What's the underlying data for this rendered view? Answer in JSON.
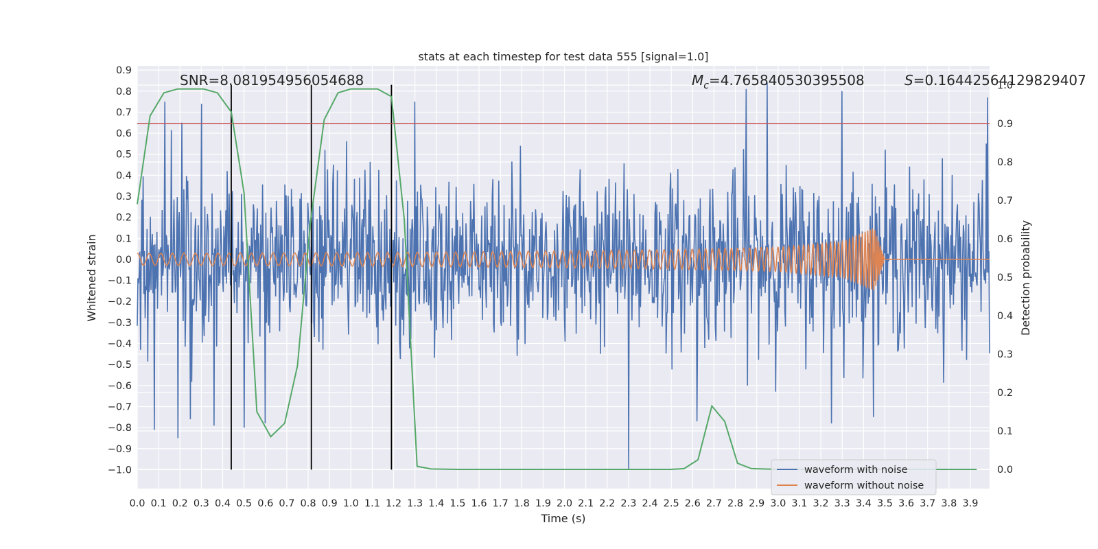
{
  "chart_data": {
    "type": "line",
    "title": "stats at each timestep for test data 555 [signal=1.0]",
    "xlabel": "Time (s)",
    "ylabel": "Whitened strain",
    "y2label": "Detection probability",
    "xlim": [
      0.0,
      3.99
    ],
    "ylim": [
      -1.09,
      0.92
    ],
    "y2lim": [
      -0.05,
      1.05
    ],
    "x_ticks": [
      "0.0",
      "0.1",
      "0.2",
      "0.3",
      "0.4",
      "0.5",
      "0.6",
      "0.7",
      "0.8",
      "0.9",
      "1.0",
      "1.1",
      "1.2",
      "1.3",
      "1.4",
      "1.5",
      "1.6",
      "1.7",
      "1.8",
      "1.9",
      "2.0",
      "2.1",
      "2.2",
      "2.3",
      "2.4",
      "2.5",
      "2.6",
      "2.7",
      "2.8",
      "2.9",
      "3.0",
      "3.1",
      "3.2",
      "3.3",
      "3.4",
      "3.5",
      "3.6",
      "3.7",
      "3.8",
      "3.9"
    ],
    "y_ticks": [
      "0.9",
      "0.8",
      "0.7",
      "0.6",
      "0.5",
      "0.4",
      "0.3",
      "0.2",
      "0.1",
      "0.0",
      "−0.1",
      "−0.2",
      "−0.3",
      "−0.4",
      "−0.5",
      "−0.6",
      "−0.7",
      "−0.8",
      "−0.9",
      "−1.0"
    ],
    "y2_ticks": [
      "1.0",
      "0.9",
      "0.8",
      "0.7",
      "0.6",
      "0.5",
      "0.4",
      "0.3",
      "0.2",
      "0.1",
      "0.0"
    ],
    "annotations": {
      "snr": "SNR=8.081954956054688",
      "mc_symbol": "M",
      "mc_sub": "c",
      "mc_value": "=4.765840530395508",
      "s_symbol": "S",
      "s_value": "=0.16442564129829407"
    },
    "threshold": 0.9,
    "vertical_lines_x": [
      0.44,
      0.815,
      1.19
    ],
    "vertical_lines_yrange": [
      -1.0,
      0.83
    ],
    "series": [
      {
        "name": "waveform with noise",
        "color": "#4c72b0",
        "kind": "noise",
        "amplitude_envelope": [
          -0.75,
          0.75
        ],
        "spikes": [
          [
            0.13,
            0.75
          ],
          [
            0.21,
            0.65
          ],
          [
            0.3,
            0.74
          ],
          [
            0.08,
            -0.81
          ],
          [
            0.19,
            -0.85
          ],
          [
            0.25,
            -0.76
          ],
          [
            0.36,
            -0.79
          ],
          [
            0.5,
            -0.8
          ],
          [
            0.6,
            -0.78
          ],
          [
            1.3,
            0.75
          ],
          [
            2.3,
            -1.0
          ],
          [
            2.85,
            0.81
          ],
          [
            2.95,
            0.84
          ],
          [
            3.3,
            0.8
          ],
          [
            3.98,
            0.77
          ],
          [
            2.62,
            -0.77
          ],
          [
            3.25,
            -0.78
          ]
        ]
      },
      {
        "name": "waveform without noise",
        "color": "#dd8452",
        "kind": "chirp",
        "x": [
          0.0,
          0.5,
          1.0,
          1.5,
          2.0,
          2.5,
          3.0,
          3.3,
          3.45,
          3.5,
          3.99
        ],
        "amp": [
          0.028,
          0.03,
          0.032,
          0.035,
          0.04,
          0.046,
          0.058,
          0.085,
          0.15,
          0.0,
          0.0
        ]
      },
      {
        "name": "detection probability",
        "color": "#55a868",
        "axis": "right",
        "x": [
          0.0,
          0.06,
          0.125,
          0.19,
          0.25,
          0.31,
          0.375,
          0.44,
          0.5,
          0.56,
          0.625,
          0.69,
          0.75,
          0.81,
          0.875,
          0.94,
          1.0,
          1.06,
          1.125,
          1.19,
          1.25,
          1.31,
          1.375,
          1.5,
          2.0,
          2.5,
          2.56,
          2.625,
          2.69,
          2.75,
          2.81,
          2.875,
          3.0,
          3.5,
          3.93
        ],
        "y": [
          0.69,
          0.92,
          0.98,
          0.99,
          0.99,
          0.99,
          0.98,
          0.93,
          0.72,
          0.15,
          0.085,
          0.12,
          0.27,
          0.64,
          0.91,
          0.98,
          0.99,
          0.99,
          0.99,
          0.97,
          0.65,
          0.008,
          0.001,
          0.0,
          0.0,
          0.0,
          0.002,
          0.025,
          0.165,
          0.125,
          0.016,
          0.002,
          0.0,
          0.0,
          0.0
        ]
      }
    ],
    "legend": {
      "location": "lower right",
      "entries": [
        "waveform with noise",
        "waveform without noise"
      ]
    }
  }
}
